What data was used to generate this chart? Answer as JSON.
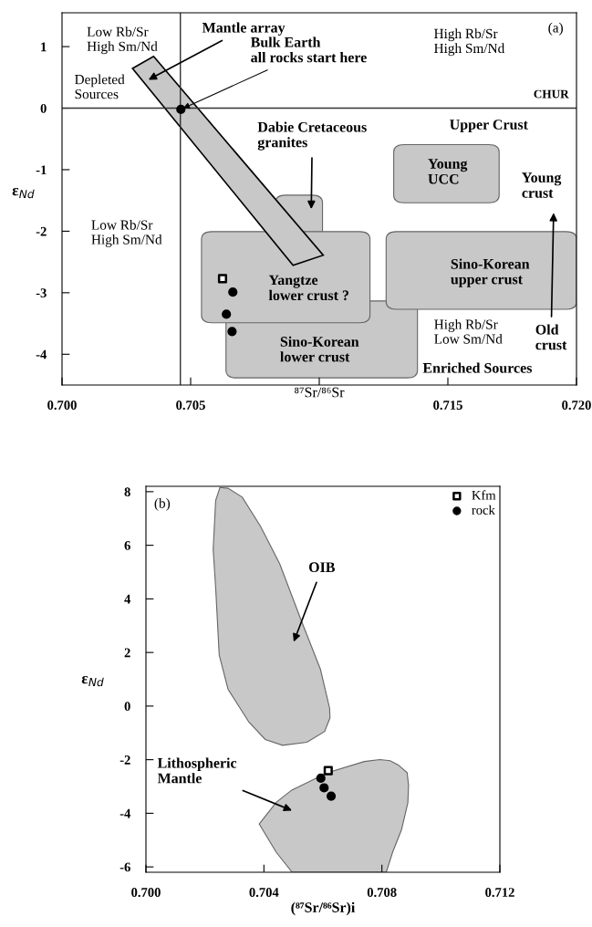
{
  "chart_data": [
    {
      "type": "scatter",
      "xlabel": "⁸⁷Sr/⁸⁶Sr",
      "ylabel": "ε$_{Nd}$",
      "xlim": [
        0.7,
        0.72
      ],
      "ylim": [
        -4.5,
        1.55
      ],
      "xticks": [
        {
          "value": 0.7,
          "label": "0.700"
        },
        {
          "value": 0.705,
          "label": "0.705"
        },
        {
          "value": 0.71,
          "label": null
        },
        {
          "value": 0.715,
          "label": "0.715"
        },
        {
          "value": 0.72,
          "label": "0.720"
        }
      ],
      "yticks": [
        -4,
        -3,
        -2,
        -1,
        0,
        1
      ],
      "grid": false,
      "legend": false,
      "series": [
        {
          "color": "#000000",
          "marker": "circle",
          "x": [
            0.70462
          ],
          "values": [
            -0.02
          ]
        },
        {
          "color": "#000000",
          "marker": "square",
          "x": [
            0.70624
          ],
          "values": [
            -2.77
          ]
        },
        {
          "color": "#000000",
          "marker": "circle",
          "x": [
            0.70664,
            0.70639,
            0.70661
          ],
          "values": [
            -2.99,
            -3.35,
            -3.63
          ]
        }
      ],
      "ref_lines": [
        {
          "axis": "x",
          "value": 0.7046,
          "color": "#333333"
        },
        {
          "axis": "y",
          "value": 0,
          "label": "CHUR",
          "color": "#333333"
        }
      ],
      "annotations": [
        "(a)",
        "Low Rb/Sr\nHigh Sm/Nd",
        "Depleted\nSources",
        "Mantle array",
        {
          "text": "Bulk Earth\nall rocks start here",
          "x": 0.70462,
          "y": -0.02
        },
        "High Rb/Sr\nHigh Sm/Nd",
        "Dabie Cretaceous\ngranites",
        "Upper Crust",
        "Young\nUCC",
        "Young\ncrust",
        "Low Rb/Sr\nHigh Sm/Nd",
        "Yangtze\nlower crust ?",
        "Sino-Korean\nupper crust",
        "Sino-Korean\nlower crust",
        "High Rb/Sr\nLow Sm/Nd",
        "Old\ncrust",
        "Enriched Sources"
      ]
    },
    {
      "type": "scatter",
      "xlabel": "(⁸⁷Sr/⁸⁶Sr)i",
      "ylabel": "ε$_{Nd}$",
      "xlim": [
        0.7,
        0.712
      ],
      "ylim": [
        -6.2,
        8.2
      ],
      "xticks": [
        {
          "value": 0.7,
          "label": "0.700"
        },
        {
          "value": 0.704,
          "label": "0.704"
        },
        {
          "value": 0.708,
          "label": "0.708"
        },
        {
          "value": 0.712,
          "label": "0.712"
        }
      ],
      "yticks": [
        -6,
        -4,
        -2,
        0,
        2,
        4,
        6,
        8
      ],
      "grid": false,
      "legend": "top right",
      "series": [
        {
          "name": "Kfm",
          "color": "#000000",
          "marker": "square",
          "x": [
            0.70618
          ],
          "values": [
            -2.41
          ]
        },
        {
          "name": "rock",
          "color": "#000000",
          "marker": "circle",
          "x": [
            0.70593,
            0.70604,
            0.70628
          ],
          "values": [
            -2.69,
            -3.05,
            -3.36
          ]
        }
      ],
      "annotations": [
        "(b)",
        "OIB",
        "Lithospheric\nMantle"
      ]
    }
  ]
}
